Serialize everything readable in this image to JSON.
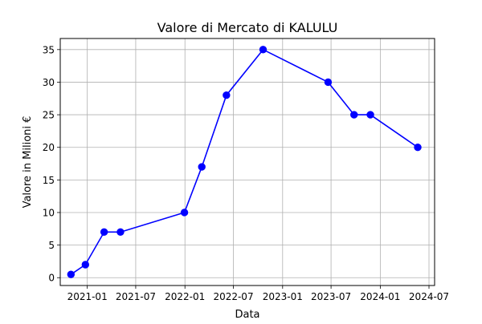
{
  "chart_data": {
    "type": "line",
    "title": "Valore di Mercato di KALULU",
    "xlabel": "Data",
    "ylabel": "Valore in Milioni €",
    "x_is_date": true,
    "xlim": [
      "2020-09-22",
      "2024-07-22"
    ],
    "ylim": [
      -1.2,
      36.7
    ],
    "x_ticks": [
      {
        "value": "2021-01-01",
        "label": "2021-01"
      },
      {
        "value": "2021-07-01",
        "label": "2021-07"
      },
      {
        "value": "2022-01-01",
        "label": "2022-01"
      },
      {
        "value": "2022-07-01",
        "label": "2022-07"
      },
      {
        "value": "2023-01-01",
        "label": "2023-01"
      },
      {
        "value": "2023-07-01",
        "label": "2023-07"
      },
      {
        "value": "2024-01-01",
        "label": "2024-01"
      },
      {
        "value": "2024-07-01",
        "label": "2024-07"
      }
    ],
    "y_ticks": [
      0,
      5,
      10,
      15,
      20,
      25,
      30,
      35
    ],
    "grid": true,
    "series": [
      {
        "color": "#0000ff",
        "marker": "circle",
        "points": [
          {
            "x": "2020-11-01",
            "y": 0.5
          },
          {
            "x": "2020-12-25",
            "y": 2
          },
          {
            "x": "2021-03-05",
            "y": 7
          },
          {
            "x": "2021-05-05",
            "y": 7
          },
          {
            "x": "2021-12-30",
            "y": 10
          },
          {
            "x": "2022-03-05",
            "y": 17
          },
          {
            "x": "2022-06-05",
            "y": 28
          },
          {
            "x": "2022-10-20",
            "y": 35
          },
          {
            "x": "2023-06-20",
            "y": 30
          },
          {
            "x": "2023-09-25",
            "y": 25
          },
          {
            "x": "2023-11-25",
            "y": 25
          },
          {
            "x": "2024-05-20",
            "y": 20
          }
        ]
      }
    ]
  }
}
